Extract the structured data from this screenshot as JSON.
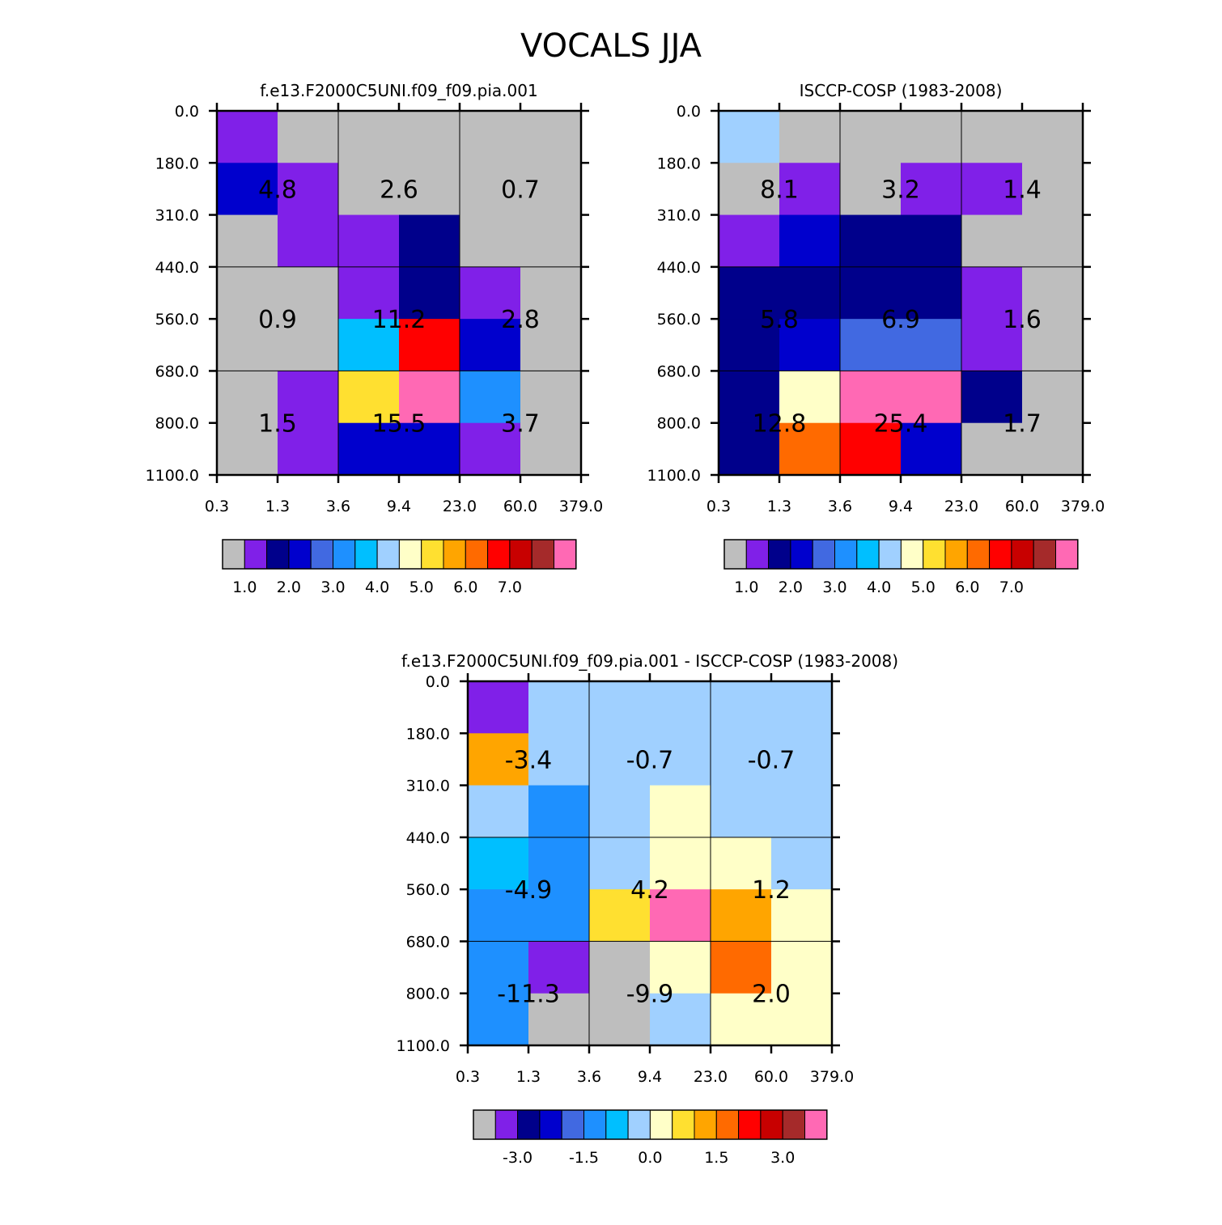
{
  "figure_title": "VOCALS JJA",
  "colors": {
    "palette": [
      "#bebebe",
      "#8020e8",
      "#00008b",
      "#0000cd",
      "#4169e1",
      "#1e90ff",
      "#00bfff",
      "#a0d0ff",
      "#ffffc8",
      "#ffe030",
      "#ffa500",
      "#ff6a00",
      "#ff0000",
      "#c80000",
      "#a52a2a",
      "#ff69b4"
    ]
  },
  "chart_data": [
    {
      "type": "heatmap",
      "title": "f.e13.F2000C5UNI.f09_f09.pia.001",
      "x_tick_labels": [
        "0.3",
        "1.3",
        "3.6",
        "9.4",
        "23.0",
        "60.0",
        "379.0"
      ],
      "y_tick_labels": [
        "0.0",
        "180.0",
        "310.0",
        "440.0",
        "560.0",
        "680.0",
        "800.0",
        "1100.0"
      ],
      "cell_color_index": [
        [
          1,
          0,
          0,
          0,
          0,
          0
        ],
        [
          3,
          1,
          0,
          0,
          0,
          0
        ],
        [
          0,
          1,
          1,
          2,
          0,
          0
        ],
        [
          0,
          0,
          1,
          2,
          1,
          0
        ],
        [
          0,
          0,
          6,
          12,
          3,
          0
        ],
        [
          0,
          1,
          9,
          15,
          5,
          0
        ],
        [
          0,
          1,
          3,
          3,
          1,
          0
        ]
      ],
      "box_values": [
        [
          "4.8",
          "2.6",
          "0.7"
        ],
        [
          "0.9",
          "11.2",
          "2.8"
        ],
        [
          "1.5",
          "15.5",
          "3.7"
        ]
      ],
      "colorbar_labels": [
        "1.0",
        "2.0",
        "3.0",
        "4.0",
        "5.0",
        "6.0",
        "7.0"
      ]
    },
    {
      "type": "heatmap",
      "title": "ISCCP-COSP (1983-2008)",
      "x_tick_labels": [
        "0.3",
        "1.3",
        "3.6",
        "9.4",
        "23.0",
        "60.0",
        "379.0"
      ],
      "y_tick_labels": [
        "0.0",
        "180.0",
        "310.0",
        "440.0",
        "560.0",
        "680.0",
        "800.0",
        "1100.0"
      ],
      "cell_color_index": [
        [
          7,
          0,
          0,
          0,
          0,
          0
        ],
        [
          0,
          1,
          0,
          1,
          1,
          0
        ],
        [
          1,
          3,
          2,
          2,
          0,
          0
        ],
        [
          2,
          2,
          2,
          2,
          1,
          0
        ],
        [
          2,
          3,
          4,
          4,
          1,
          0
        ],
        [
          2,
          8,
          15,
          15,
          2,
          0
        ],
        [
          2,
          11,
          12,
          3,
          0,
          0
        ]
      ],
      "box_values": [
        [
          "8.1",
          "3.2",
          "1.4"
        ],
        [
          "5.8",
          "6.9",
          "1.6"
        ],
        [
          "12.8",
          "25.4",
          "1.7"
        ]
      ],
      "colorbar_labels": [
        "1.0",
        "2.0",
        "3.0",
        "4.0",
        "5.0",
        "6.0",
        "7.0"
      ]
    },
    {
      "type": "heatmap",
      "title": "f.e13.F2000C5UNI.f09_f09.pia.001 - ISCCP-COSP (1983-2008)",
      "x_tick_labels": [
        "0.3",
        "1.3",
        "3.6",
        "9.4",
        "23.0",
        "60.0",
        "379.0"
      ],
      "y_tick_labels": [
        "0.0",
        "180.0",
        "310.0",
        "440.0",
        "560.0",
        "680.0",
        "800.0",
        "1100.0"
      ],
      "cell_color_index": [
        [
          1,
          7,
          7,
          7,
          7,
          7
        ],
        [
          10,
          7,
          7,
          7,
          7,
          7
        ],
        [
          7,
          5,
          7,
          8,
          7,
          7
        ],
        [
          6,
          5,
          7,
          8,
          8,
          7
        ],
        [
          5,
          5,
          9,
          15,
          10,
          8
        ],
        [
          5,
          1,
          0,
          8,
          11,
          8
        ],
        [
          5,
          0,
          0,
          7,
          8,
          8
        ]
      ],
      "box_values": [
        [
          "-3.4",
          "-0.7",
          "-0.7"
        ],
        [
          "-4.9",
          "4.2",
          "1.2"
        ],
        [
          "-11.3",
          "-9.9",
          "2.0"
        ]
      ],
      "colorbar_labels": [
        "-3.0",
        "-1.5",
        "0.0",
        "1.5",
        "3.0"
      ]
    }
  ]
}
